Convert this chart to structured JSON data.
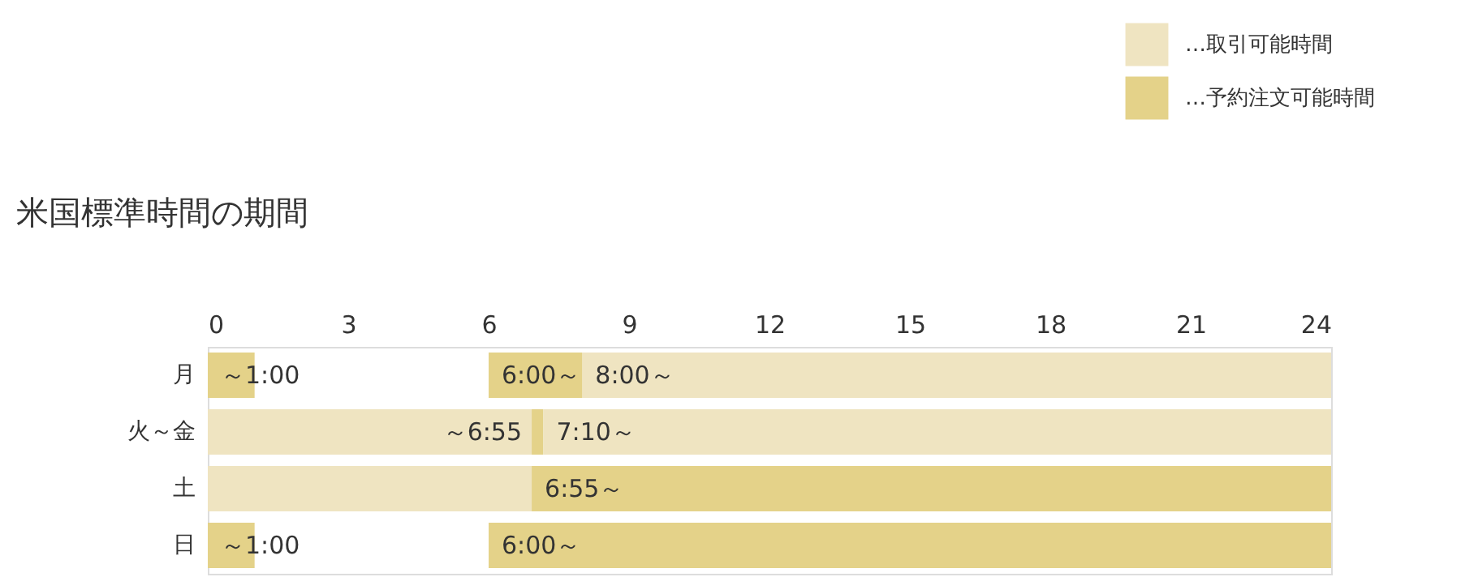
{
  "chart_data": {
    "type": "bar",
    "orientation": "horizontal",
    "title": "米国標準時間の期間",
    "categories": [
      "月",
      "火～金",
      "土",
      "日"
    ],
    "series": [
      {
        "name": "…取引可能時間",
        "color": "#efe4c1",
        "values": [
          16,
          6.92,
          6.92,
          null
        ],
        "base": [
          8,
          0,
          0,
          null
        ],
        "value_labels": [
          "8:00～",
          "～6:55",
          null,
          null
        ]
      },
      {
        "color": "#efe4c1",
        "values": [
          null,
          16.83,
          null,
          null
        ],
        "base": [
          null,
          7.17,
          null,
          null
        ],
        "value_labels": [
          null,
          "7:10～",
          null,
          null
        ]
      },
      {
        "name": "…予約注文可能時間",
        "color": "#e4d289",
        "values": [
          1,
          0.25,
          17.08,
          1
        ],
        "base": [
          0,
          6.92,
          6.92,
          0
        ],
        "value_labels": [
          "～1:00",
          null,
          "6:55～",
          "～1:00"
        ]
      },
      {
        "color": "#e4d289",
        "values": [
          2,
          null,
          null,
          18
        ],
        "base": [
          6,
          null,
          null,
          6
        ],
        "value_labels": [
          "6:00～",
          null,
          null,
          "6:00～"
        ]
      }
    ],
    "xlim": [
      0,
      24
    ],
    "xticks": [
      0,
      3,
      6,
      9,
      12,
      15,
      18,
      21,
      24
    ],
    "grid": false,
    "legend": "top right"
  }
}
